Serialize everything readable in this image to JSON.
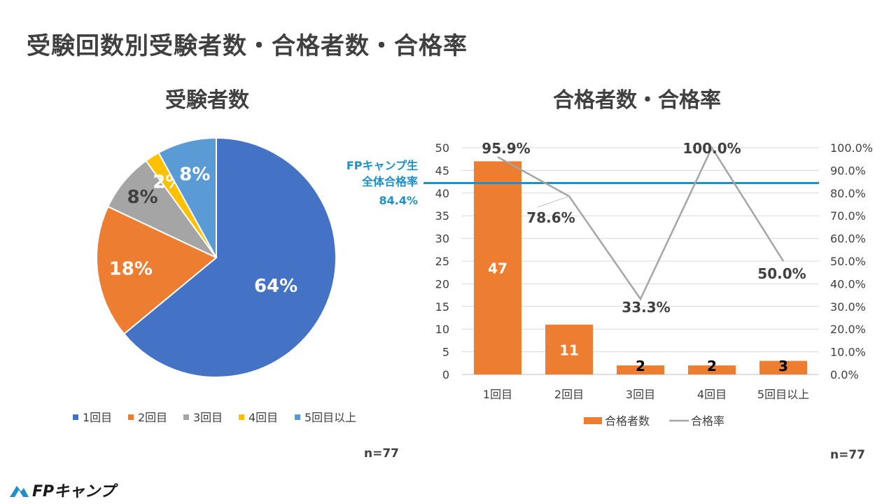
{
  "page_title": "受験回数別受験者数・合格者数・合格率",
  "logo_text": "FPキャンプ",
  "charts": {
    "pie": {
      "title": "受験者数",
      "n_label": "n=77"
    },
    "combo": {
      "title": "合格者数・合格率",
      "n_label": "n=77"
    }
  },
  "reference_line": {
    "label_line1": "FPキャンプ生",
    "label_line2": "全体合格率",
    "value_label": "84.4%",
    "value": 84.4,
    "color": "#1f8fc8"
  },
  "colors": {
    "blue": "#4472c4",
    "orange": "#ed7d31",
    "gray": "#a5a5a5",
    "yellow": "#ffc000",
    "lightblue": "#5b9bd5",
    "line": "#a5a5a5"
  },
  "chart_data": [
    {
      "type": "pie",
      "title": "受験者数",
      "categories": [
        "1回目",
        "2回目",
        "3回目",
        "4回目",
        "5回目以上"
      ],
      "values": [
        64,
        18,
        8,
        2,
        8
      ],
      "labels": [
        "64%",
        "18%",
        "8%",
        "2%",
        "8%"
      ],
      "colors": [
        "#4472c4",
        "#ed7d31",
        "#a5a5a5",
        "#ffc000",
        "#5b9bd5"
      ],
      "legend": "bottom"
    },
    {
      "type": "bar",
      "title": "合格者数・合格率",
      "categories": [
        "1回目",
        "2回目",
        "3回目",
        "4回目",
        "5回目以上"
      ],
      "series": [
        {
          "name": "合格者数",
          "type": "bar",
          "values": [
            47,
            11,
            2,
            2,
            3
          ],
          "labels": [
            "47",
            "11",
            "2",
            "2",
            "3"
          ]
        },
        {
          "name": "合格率",
          "type": "line",
          "values": [
            95.9,
            78.6,
            33.3,
            100.0,
            50.0
          ],
          "labels": [
            "95.9%",
            "78.6%",
            "33.3%",
            "100.0%",
            "50.0%"
          ]
        }
      ],
      "ylim": [
        0,
        50
      ],
      "yticks": [
        "0",
        "5",
        "10",
        "15",
        "20",
        "25",
        "30",
        "35",
        "40",
        "45",
        "50"
      ],
      "y2lim": [
        0,
        100
      ],
      "y2ticks": [
        "0.0%",
        "10.0%",
        "20.0%",
        "30.0%",
        "40.0%",
        "50.0%",
        "60.0%",
        "70.0%",
        "80.0%",
        "90.0%",
        "100.0%"
      ],
      "legend": "bottom"
    }
  ]
}
